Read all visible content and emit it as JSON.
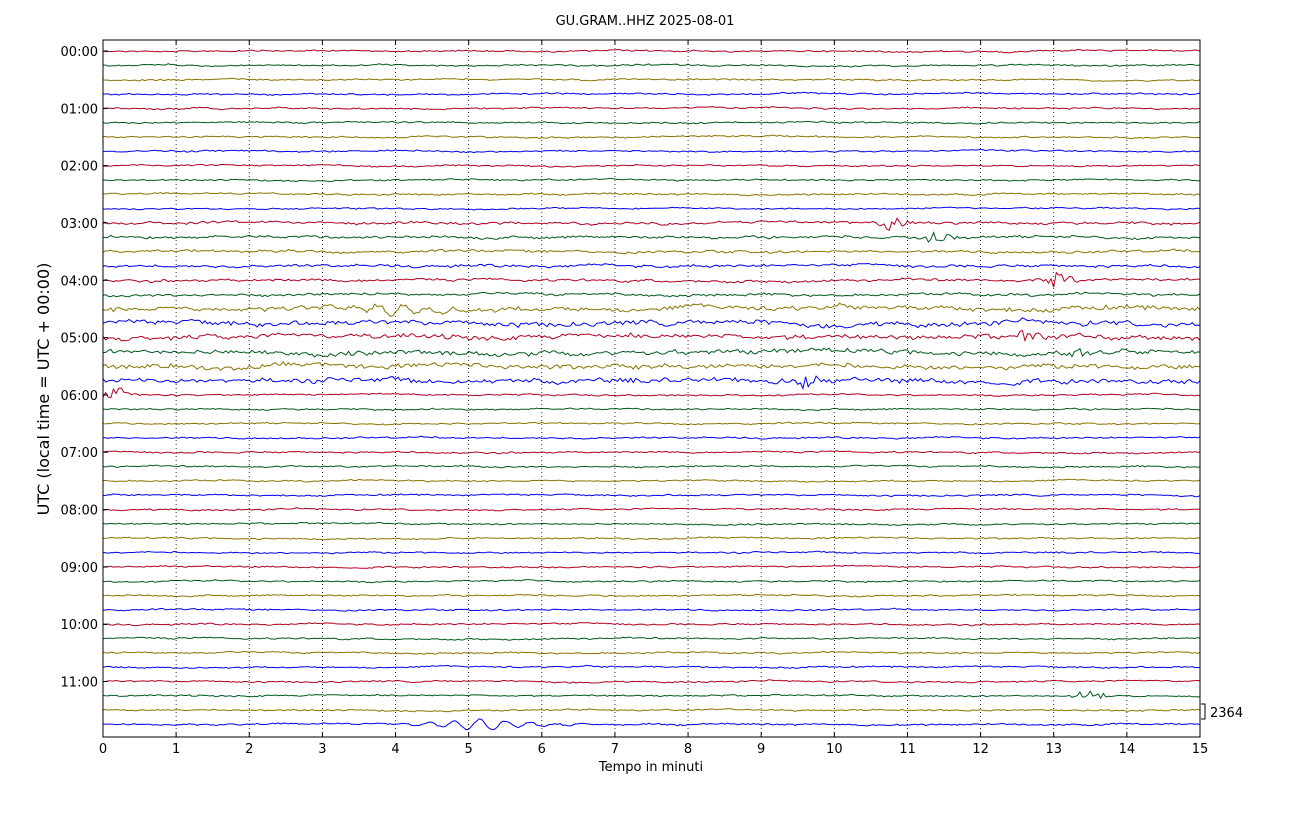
{
  "chart_data": {
    "type": "line",
    "title": "GU.GRAM..HHZ 2025-08-01",
    "xlabel": "Tempo in minuti",
    "ylabel": "UTC (local time = UTC + 00:00)",
    "xlim": [
      0,
      15
    ],
    "x_ticks": [
      "0",
      "1",
      "2",
      "3",
      "4",
      "5",
      "6",
      "7",
      "8",
      "9",
      "10",
      "11",
      "12",
      "13",
      "14",
      "15"
    ],
    "y_ticks": [
      "00:00",
      "01:00",
      "02:00",
      "03:00",
      "04:00",
      "05:00",
      "06:00",
      "07:00",
      "08:00",
      "09:00",
      "10:00",
      "11:00"
    ],
    "trace_interval_minutes": 15,
    "trace_count": 48,
    "trace_colors": [
      "#b00020",
      "#005a1e",
      "#8a7400",
      "#0000ee"
    ],
    "scale_label": "2364",
    "grid": "vertical dotted at each minute",
    "notable_events": [
      {
        "trace_start": "03:00",
        "minute": 10.75,
        "level": "strong"
      },
      {
        "trace_start": "03:15",
        "minute": 11.4,
        "level": "strong"
      },
      {
        "trace_start": "04:00",
        "minute": 13.05,
        "level": "strong"
      },
      {
        "trace_start": "04:30",
        "minute": 4.0,
        "level": "long-period"
      },
      {
        "trace_start": "05:00",
        "minute": 12.7,
        "level": "strong"
      },
      {
        "trace_start": "05:15",
        "minute": 13.3,
        "level": "strong"
      },
      {
        "trace_start": "05:45",
        "minute": 9.6,
        "level": "strong"
      },
      {
        "trace_start": "06:00",
        "minute": 0.2,
        "level": "strong"
      },
      {
        "trace_start": "11:15",
        "minute": 13.5,
        "level": "strong"
      },
      {
        "trace_start": "11:45",
        "minute": 5.2,
        "level": "long-period"
      }
    ]
  }
}
